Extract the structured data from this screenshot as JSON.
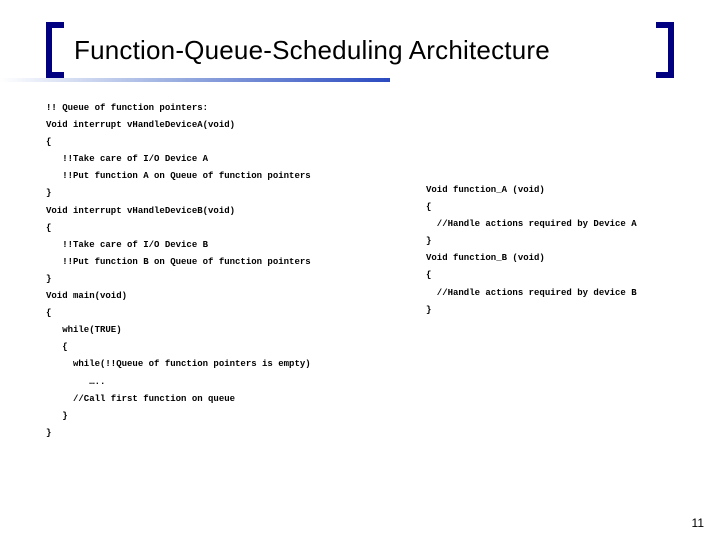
{
  "title": "Function-Queue-Scheduling Architecture",
  "page_number": "11",
  "colors": {
    "bracket": "#000080",
    "gradient_end": "#2a4ac0",
    "gradient_mid": "#9aaee0",
    "background": "#ffffff",
    "text": "#000000"
  },
  "left_code": [
    "!! Queue of function pointers:",
    "",
    "Void interrupt vHandleDeviceA(void)",
    "{",
    "   !!Take care of I/O Device A",
    "   !!Put function A on Queue of function pointers",
    "}",
    "Void interrupt vHandleDeviceB(void)",
    "{",
    "   !!Take care of I/O Device B",
    "   !!Put function B on Queue of function pointers",
    "}",
    "Void main(void)",
    "{",
    "   while(TRUE)",
    "   {",
    "     while(!!Queue of function pointers is empty)",
    "        …..",
    "     //Call first function on queue",
    "   }",
    "}"
  ],
  "right_code": [
    "Void function_A (void)",
    "{",
    "  //Handle actions required by Device A",
    "}",
    "",
    "Void function_B (void)",
    "{",
    "  //Handle actions required by device B",
    "}"
  ]
}
